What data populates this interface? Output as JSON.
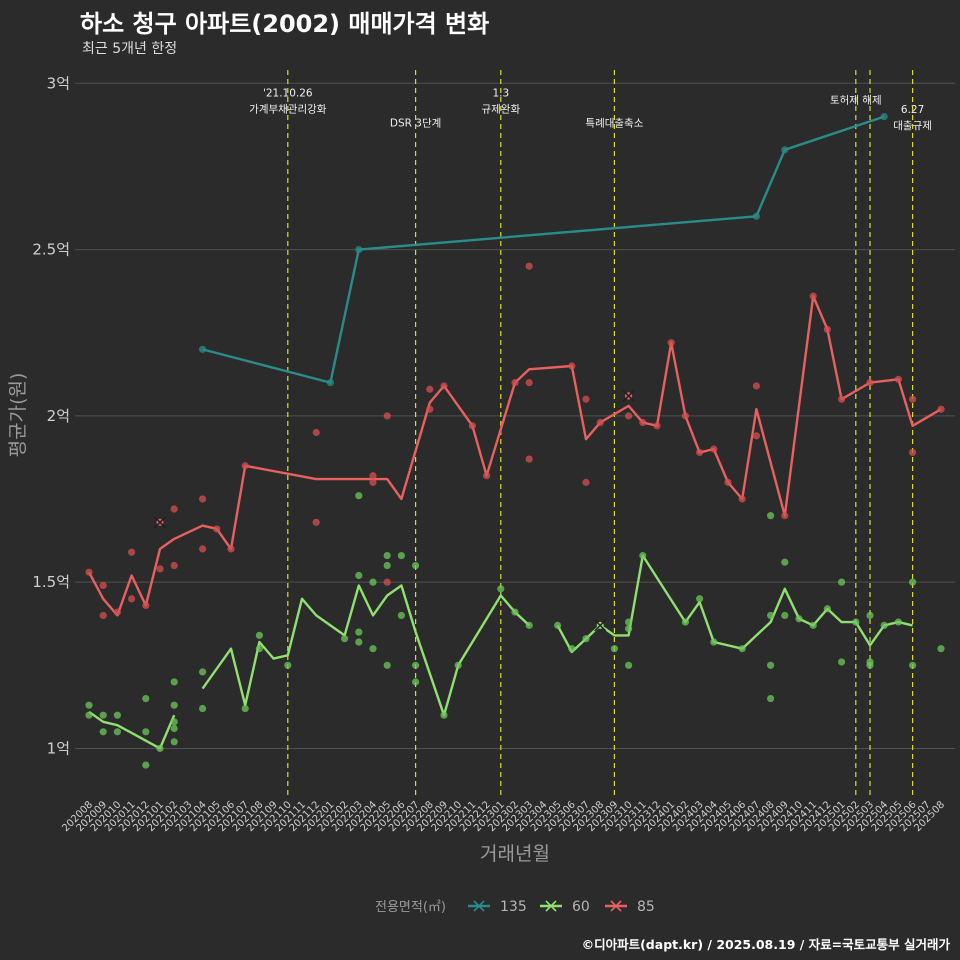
{
  "header": {
    "title": "하소 청구 아파트(2002) 매매가격 변화",
    "subtitle": "최근 5개년 한정"
  },
  "caption": "©디아파트(dapt.kr) / 2025.08.19 / 자료=국토교통부 실거래가",
  "colors": {
    "s135": "#2a8c8a",
    "s60": "#90e070",
    "s85": "#e86060",
    "events": "#d8e020",
    "grid": "#505050",
    "dots135": "#2a8c8a",
    "dots60": "#6cc85a",
    "dots85": "#d85050"
  },
  "chart_data": {
    "type": "line",
    "xlabel": "거래년월",
    "ylabel": "평균가(원)",
    "categories": [
      "202008",
      "202009",
      "202010",
      "202011",
      "202012",
      "202101",
      "202102",
      "202103",
      "202104",
      "202105",
      "202106",
      "202107",
      "202108",
      "202109",
      "202110",
      "202111",
      "202112",
      "202201",
      "202202",
      "202203",
      "202204",
      "202205",
      "202206",
      "202207",
      "202208",
      "202209",
      "202210",
      "202211",
      "202212",
      "202301",
      "202302",
      "202303",
      "202304",
      "202305",
      "202306",
      "202307",
      "202308",
      "202309",
      "202310",
      "202311",
      "202312",
      "202401",
      "202402",
      "202403",
      "202404",
      "202405",
      "202406",
      "202407",
      "202408",
      "202409",
      "202410",
      "202411",
      "202412",
      "202501",
      "202502",
      "202503",
      "202504",
      "202505",
      "202506",
      "202507",
      "202508"
    ],
    "ylim": [
      0.86,
      3.04
    ],
    "yticks": [
      {
        "value": 1.0,
        "label": "1억"
      },
      {
        "value": 1.5,
        "label": "1.5억"
      },
      {
        "value": 2.0,
        "label": "2억"
      },
      {
        "value": 2.5,
        "label": "2.5억"
      },
      {
        "value": 3.0,
        "label": "3억"
      }
    ],
    "series": [
      {
        "name": "135",
        "color": "#2a8c8a",
        "points": [
          [
            8,
            2.2
          ],
          [
            17,
            2.1
          ],
          [
            19,
            2.5
          ],
          [
            47,
            2.6
          ],
          [
            49,
            2.8
          ],
          [
            56,
            2.9
          ]
        ]
      },
      {
        "name": "60",
        "color": "#90e070",
        "points": [
          [
            0,
            1.11
          ],
          [
            1,
            1.08
          ],
          [
            2,
            1.07
          ],
          [
            5,
            1.0
          ],
          [
            6,
            1.1
          ],
          [
            null,
            null
          ],
          [
            8,
            1.18
          ],
          [
            10,
            1.3
          ],
          [
            11,
            1.13
          ],
          [
            12,
            1.32
          ],
          [
            13,
            1.27
          ],
          [
            14,
            1.28
          ],
          [
            15,
            1.45
          ],
          [
            16,
            1.4
          ],
          [
            18,
            1.34
          ],
          [
            19,
            1.49
          ],
          [
            20,
            1.4
          ],
          [
            21,
            1.46
          ],
          [
            22,
            1.49
          ],
          [
            23,
            1.35
          ],
          [
            25,
            1.1
          ],
          [
            26,
            1.25
          ],
          [
            29,
            1.46
          ],
          [
            30,
            1.41
          ],
          [
            31,
            1.37
          ],
          [
            null,
            null
          ],
          [
            33,
            1.37
          ],
          [
            34,
            1.29
          ],
          [
            35,
            1.33
          ],
          [
            36,
            1.37
          ],
          [
            37,
            1.34
          ],
          [
            38,
            1.34
          ],
          [
            39,
            1.58
          ],
          [
            42,
            1.38
          ],
          [
            43,
            1.44
          ],
          [
            44,
            1.32
          ],
          [
            46,
            1.3
          ],
          [
            48,
            1.38
          ],
          [
            49,
            1.48
          ],
          [
            50,
            1.39
          ],
          [
            51,
            1.37
          ],
          [
            52,
            1.42
          ],
          [
            53,
            1.38
          ],
          [
            54,
            1.38
          ],
          [
            55,
            1.31
          ],
          [
            56,
            1.37
          ],
          [
            57,
            1.38
          ],
          [
            58,
            1.37
          ]
        ]
      },
      {
        "name": "85",
        "color": "#e86060",
        "points": [
          [
            0,
            1.53
          ],
          [
            1,
            1.45
          ],
          [
            2,
            1.4
          ],
          [
            3,
            1.52
          ],
          [
            4,
            1.43
          ],
          [
            5,
            1.6
          ],
          [
            6,
            1.63
          ],
          [
            8,
            1.67
          ],
          [
            9,
            1.66
          ],
          [
            10,
            1.6
          ],
          [
            11,
            1.85
          ],
          [
            16,
            1.81
          ],
          [
            21,
            1.81
          ],
          [
            22,
            1.75
          ],
          [
            24,
            2.04
          ],
          [
            25,
            2.09
          ],
          [
            27,
            1.97
          ],
          [
            28,
            1.82
          ],
          [
            30,
            2.1
          ],
          [
            31,
            2.14
          ],
          [
            34,
            2.15
          ],
          [
            35,
            1.93
          ],
          [
            36,
            1.98
          ],
          [
            38,
            2.03
          ],
          [
            39,
            1.98
          ],
          [
            40,
            1.97
          ],
          [
            41,
            2.22
          ],
          [
            42,
            2.0
          ],
          [
            43,
            1.89
          ],
          [
            44,
            1.9
          ],
          [
            45,
            1.8
          ],
          [
            46,
            1.75
          ],
          [
            47,
            2.02
          ],
          [
            49,
            1.7
          ],
          [
            51,
            2.36
          ],
          [
            52,
            2.26
          ],
          [
            53,
            2.05
          ],
          [
            55,
            2.1
          ],
          [
            57,
            2.11
          ],
          [
            58,
            1.97
          ],
          [
            60,
            2.02
          ]
        ]
      }
    ],
    "scatter": [
      {
        "series": "135",
        "points": [
          [
            8,
            2.2
          ],
          [
            17,
            2.1
          ],
          [
            19,
            2.5
          ],
          [
            47,
            2.6
          ],
          [
            49,
            2.8
          ],
          [
            56,
            2.9
          ]
        ]
      },
      {
        "series": "60",
        "points": [
          [
            0,
            1.13
          ],
          [
            0,
            1.1
          ],
          [
            1,
            1.1
          ],
          [
            1,
            1.05
          ],
          [
            2,
            1.1
          ],
          [
            2,
            1.05
          ],
          [
            4,
            1.15
          ],
          [
            4,
            1.05
          ],
          [
            4,
            0.95
          ],
          [
            5,
            1.0
          ],
          [
            6,
            1.2
          ],
          [
            6,
            1.13
          ],
          [
            6,
            1.08
          ],
          [
            6,
            1.06
          ],
          [
            6,
            1.02
          ],
          [
            8,
            1.23
          ],
          [
            8,
            1.12
          ],
          [
            11,
            1.12
          ],
          [
            12,
            1.34
          ],
          [
            12,
            1.3
          ],
          [
            14,
            1.25
          ],
          [
            18,
            1.33
          ],
          [
            19,
            1.76
          ],
          [
            19,
            1.52
          ],
          [
            19,
            1.35
          ],
          [
            19,
            1.32
          ],
          [
            20,
            1.5
          ],
          [
            20,
            1.3
          ],
          [
            21,
            1.58
          ],
          [
            21,
            1.55
          ],
          [
            21,
            1.25
          ],
          [
            22,
            1.58
          ],
          [
            22,
            1.4
          ],
          [
            23,
            1.55
          ],
          [
            23,
            1.25
          ],
          [
            23,
            1.2
          ],
          [
            25,
            1.1
          ],
          [
            26,
            1.25
          ],
          [
            29,
            1.48
          ],
          [
            30,
            1.41
          ],
          [
            31,
            1.37
          ],
          [
            33,
            1.37
          ],
          [
            34,
            1.3
          ],
          [
            35,
            1.33
          ],
          [
            37,
            1.3
          ],
          [
            38,
            1.38
          ],
          [
            38,
            1.36
          ],
          [
            38,
            1.25
          ],
          [
            39,
            1.58
          ],
          [
            42,
            1.38
          ],
          [
            43,
            1.45
          ],
          [
            44,
            1.32
          ],
          [
            46,
            1.3
          ],
          [
            48,
            1.7
          ],
          [
            48,
            1.4
          ],
          [
            48,
            1.25
          ],
          [
            48,
            1.15
          ],
          [
            49,
            1.56
          ],
          [
            49,
            1.4
          ],
          [
            50,
            1.39
          ],
          [
            51,
            1.37
          ],
          [
            52,
            1.42
          ],
          [
            53,
            1.5
          ],
          [
            53,
            1.26
          ],
          [
            54,
            1.38
          ],
          [
            55,
            1.4
          ],
          [
            55,
            1.26
          ],
          [
            55,
            1.25
          ],
          [
            56,
            1.37
          ],
          [
            57,
            1.38
          ],
          [
            58,
            1.5
          ],
          [
            58,
            1.25
          ],
          [
            60,
            1.3
          ]
        ]
      },
      {
        "series": "85",
        "points": [
          [
            0,
            1.53
          ],
          [
            1,
            1.49
          ],
          [
            1,
            1.4
          ],
          [
            2,
            1.41
          ],
          [
            3,
            1.59
          ],
          [
            3,
            1.45
          ],
          [
            4,
            1.43
          ],
          [
            5,
            1.54
          ],
          [
            6,
            1.72
          ],
          [
            6,
            1.55
          ],
          [
            8,
            1.75
          ],
          [
            8,
            1.6
          ],
          [
            9,
            1.66
          ],
          [
            10,
            1.6
          ],
          [
            11,
            1.85
          ],
          [
            16,
            1.95
          ],
          [
            16,
            1.68
          ],
          [
            20,
            1.82
          ],
          [
            20,
            1.8
          ],
          [
            21,
            2.0
          ],
          [
            21,
            1.5
          ],
          [
            24,
            2.08
          ],
          [
            24,
            2.02
          ],
          [
            25,
            2.09
          ],
          [
            27,
            1.97
          ],
          [
            28,
            1.82
          ],
          [
            30,
            2.1
          ],
          [
            31,
            2.45
          ],
          [
            31,
            2.1
          ],
          [
            31,
            1.87
          ],
          [
            34,
            2.15
          ],
          [
            35,
            2.05
          ],
          [
            35,
            1.8
          ],
          [
            36,
            1.98
          ],
          [
            38,
            2.06
          ],
          [
            38,
            2.0
          ],
          [
            39,
            1.98
          ],
          [
            40,
            1.97
          ],
          [
            41,
            2.22
          ],
          [
            42,
            2.0
          ],
          [
            43,
            1.89
          ],
          [
            44,
            1.9
          ],
          [
            45,
            1.8
          ],
          [
            46,
            1.75
          ],
          [
            47,
            2.09
          ],
          [
            47,
            1.94
          ],
          [
            49,
            1.7
          ],
          [
            51,
            2.36
          ],
          [
            52,
            2.26
          ],
          [
            53,
            2.05
          ],
          [
            55,
            2.1
          ],
          [
            57,
            2.11
          ],
          [
            58,
            2.05
          ],
          [
            58,
            1.89
          ],
          [
            60,
            2.02
          ]
        ]
      }
    ],
    "crosses": [
      {
        "series": "85",
        "x": 5,
        "y": 1.68
      },
      {
        "series": "60",
        "x": 36,
        "y": 1.37
      },
      {
        "series": "85",
        "x": 38,
        "y": 2.06
      }
    ],
    "events": [
      {
        "x": 14,
        "lines": [
          "'21.10.26",
          "가계부채관리강화"
        ],
        "labelY": 2.96
      },
      {
        "x": 23,
        "lines": [
          "DSR 3단계"
        ],
        "labelY": 2.87
      },
      {
        "x": 29,
        "lines": [
          "1.3",
          "규제완화"
        ],
        "labelY": 2.96
      },
      {
        "x": 37,
        "lines": [
          "특례대출축소"
        ],
        "labelY": 2.87
      },
      {
        "x": 54,
        "lines": [
          "토허제 해제"
        ],
        "labelY": 2.94
      },
      {
        "x": 55,
        "lines": [],
        "labelY": 2.94
      },
      {
        "x": 58,
        "lines": [
          "6.27",
          "대출규제"
        ],
        "labelY": 2.91
      }
    ],
    "legend": {
      "title": "전용면적(㎡)",
      "position": "bottom",
      "items": [
        "135",
        "60",
        "85"
      ]
    }
  }
}
